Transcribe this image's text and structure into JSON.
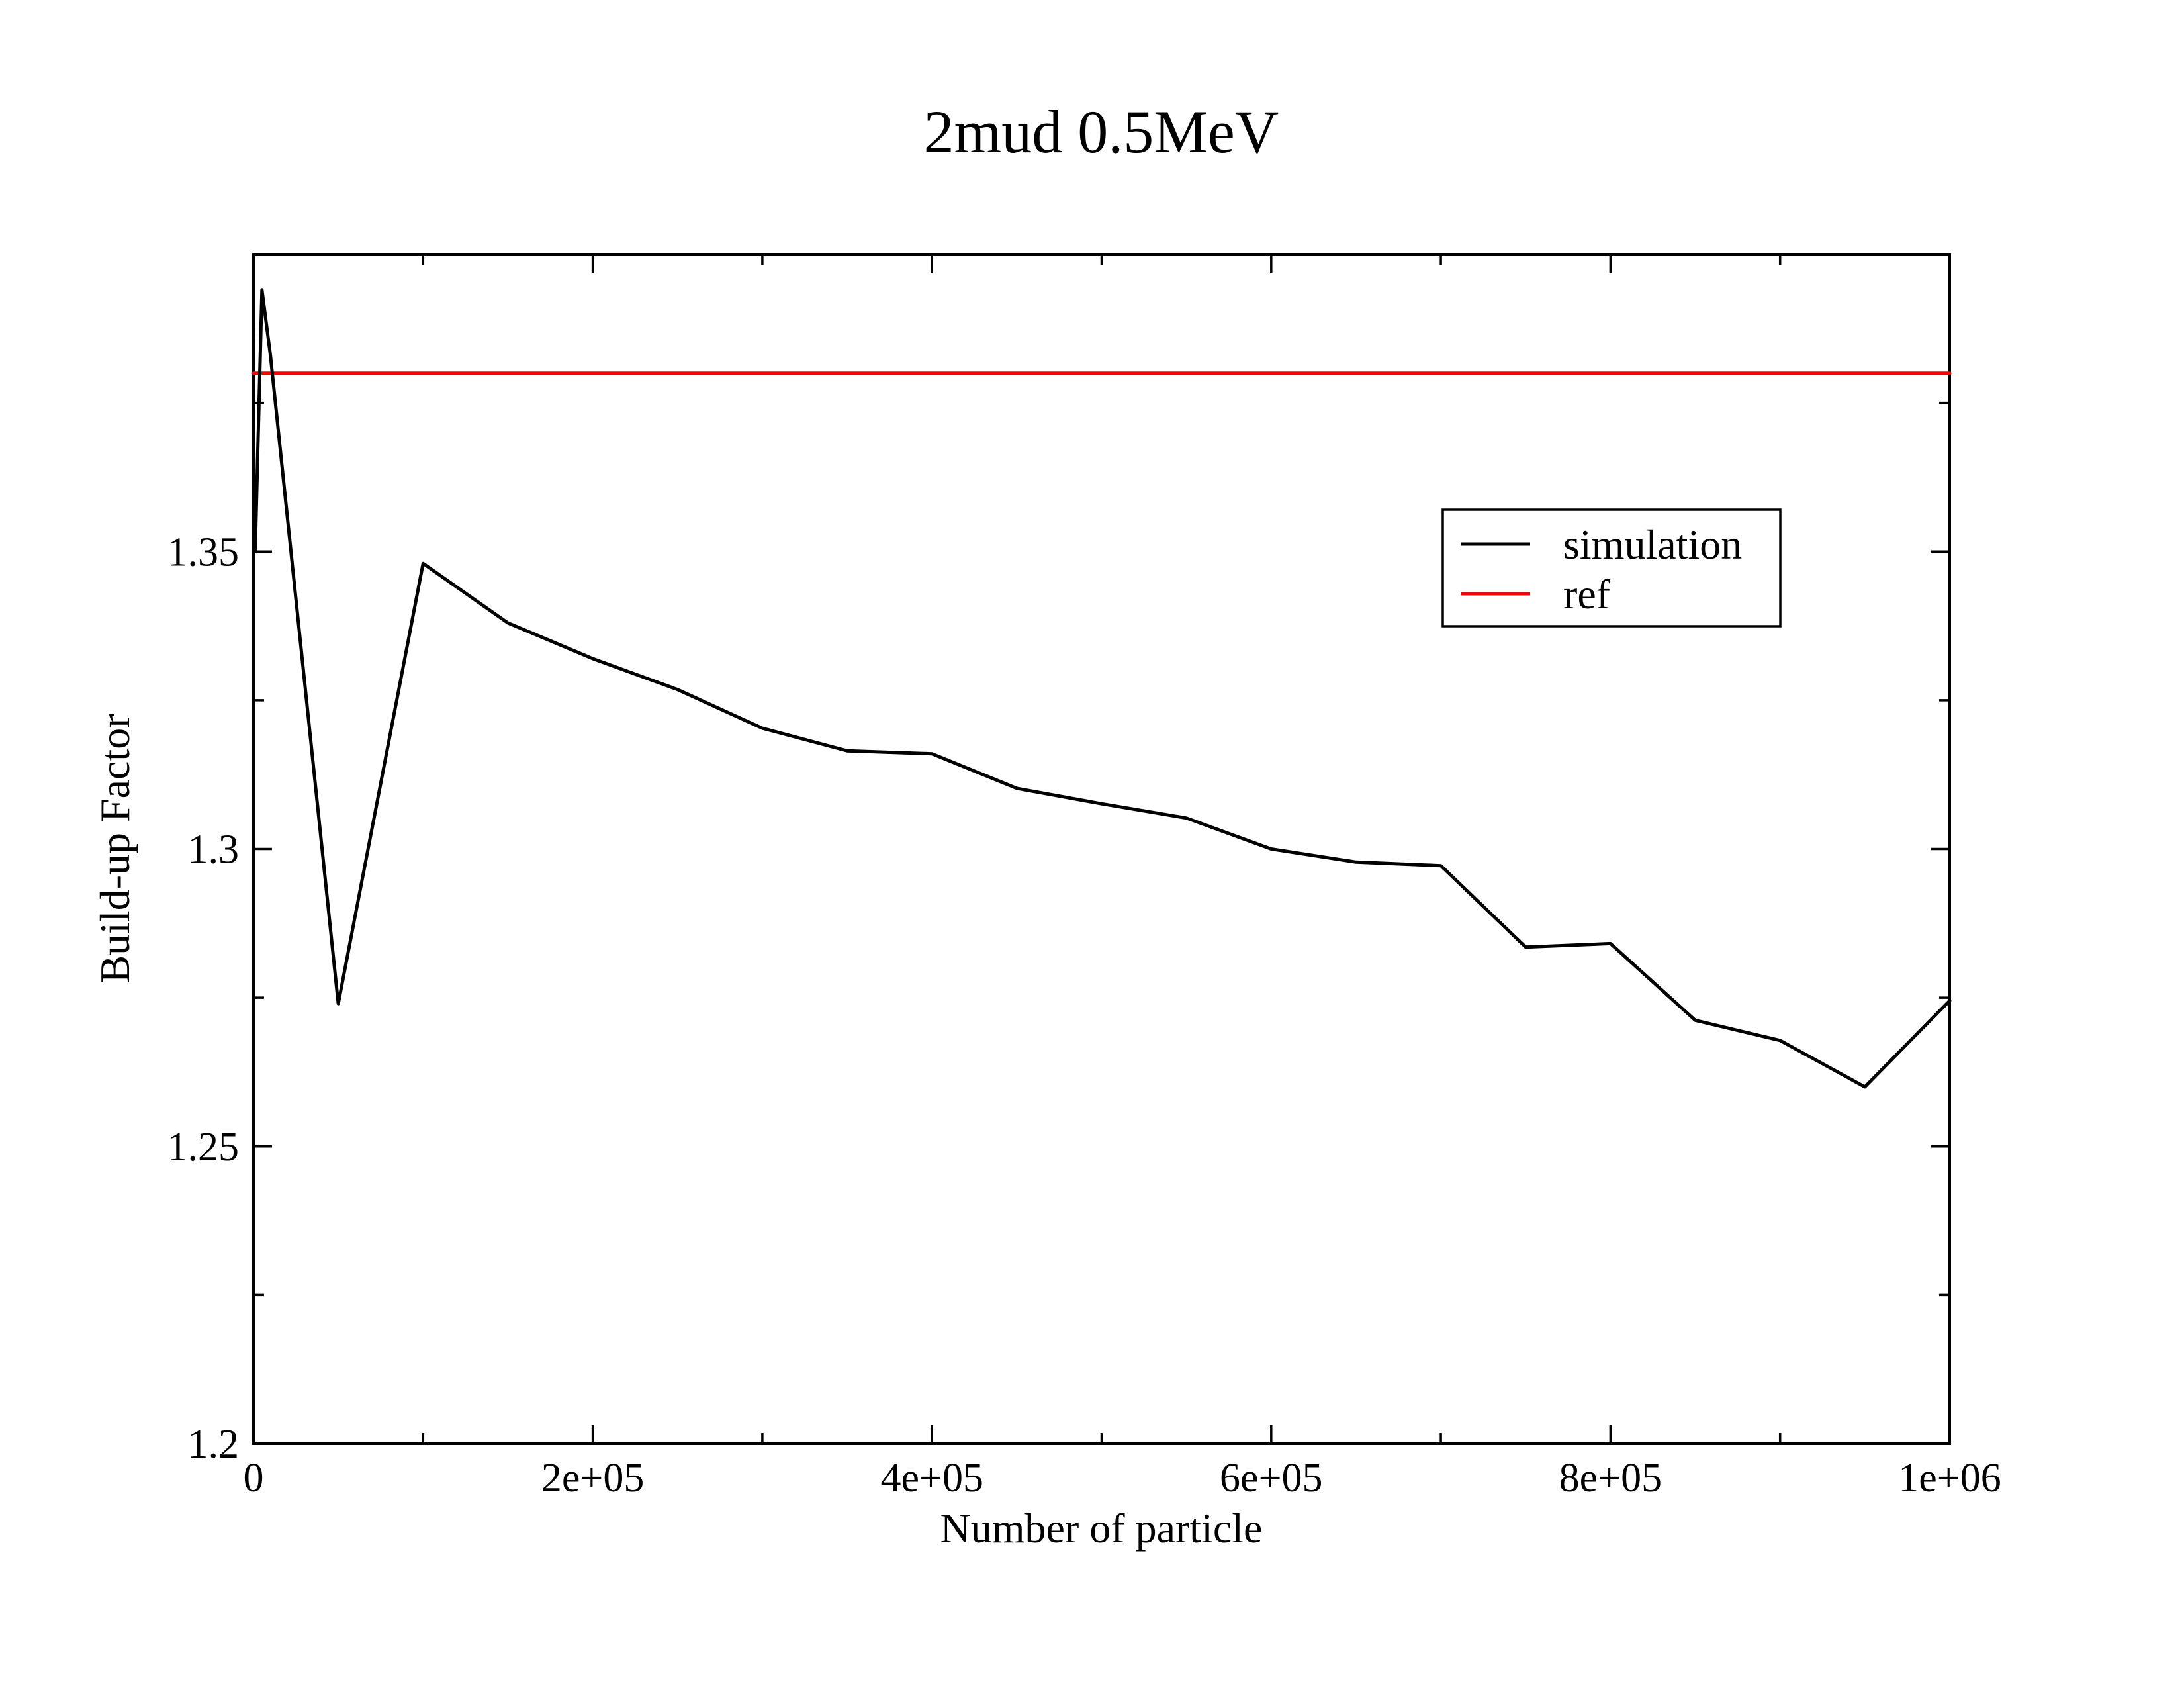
{
  "chart_data": {
    "type": "line",
    "title": "2mud 0.5MeV",
    "xlabel": "Number of particle",
    "ylabel": "Build-up Factor",
    "xlim": [
      0,
      1000000
    ],
    "ylim": [
      1.2,
      1.4
    ],
    "x_major_ticks": [
      0,
      200000,
      400000,
      600000,
      800000,
      1000000
    ],
    "x_tick_labels": [
      "0",
      "2e+05",
      "4e+05",
      "6e+05",
      "8e+05",
      "1e+06"
    ],
    "x_minor_ticks": [
      100000,
      300000,
      500000,
      700000,
      900000
    ],
    "y_major_ticks": [
      1.2,
      1.25,
      1.3,
      1.35
    ],
    "y_tick_labels": [
      "1.2",
      "1.25",
      "1.3",
      "1.35"
    ],
    "y_minor_ticks": [
      1.225,
      1.275,
      1.325,
      1.375
    ],
    "grid": false,
    "legend_position": "top-right",
    "series": [
      {
        "name": "simulation",
        "color": "#000000",
        "x": [
          1000,
          5000,
          10000,
          50000,
          100000,
          150000,
          200000,
          250000,
          300000,
          350000,
          400000,
          450000,
          500000,
          550000,
          600000,
          650000,
          700000,
          750000,
          800000,
          850000,
          900000,
          950000,
          1000000
        ],
        "y": [
          1.35,
          1.394,
          1.383,
          1.274,
          1.348,
          1.338,
          1.332,
          1.3268,
          1.3203,
          1.3165,
          1.316,
          1.3102,
          1.3076,
          1.3052,
          1.3,
          1.2978,
          1.2972,
          1.2835,
          1.2841,
          1.2712,
          1.2678,
          1.26,
          1.2745
        ]
      },
      {
        "name": "ref",
        "color": "#ff0000",
        "x": [
          0,
          1000000
        ],
        "y": [
          1.38,
          1.38
        ]
      }
    ]
  }
}
